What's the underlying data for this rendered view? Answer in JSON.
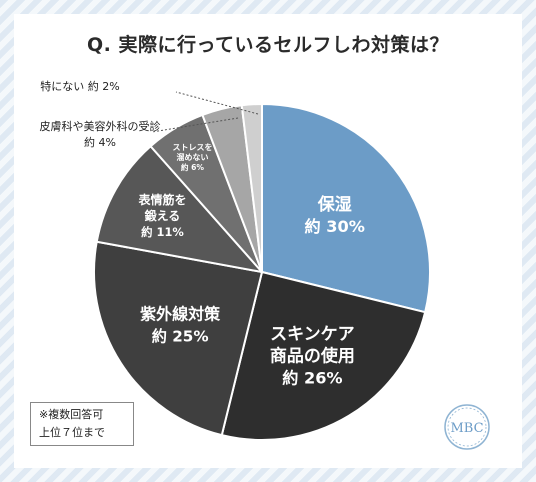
{
  "title": "Q. 実際に行っているセルフしわ対策は？",
  "footnote": {
    "line1": "※複数回答可",
    "line2": "上位７位まで"
  },
  "logo_text": "MBC",
  "colors": {
    "highlight": "#6c9cc7",
    "dark1": "#2e2e2e",
    "dark2": "#3d3d3d",
    "dark3": "#555555",
    "mid": "#6e6e6e",
    "light1": "#9b9b9b",
    "light2": "#bdbdbd",
    "light3": "#d6d6d6"
  },
  "chart_data": {
    "type": "pie",
    "title": "Q. 実際に行っているセルフしわ対策は？",
    "unit": "%",
    "slices": [
      {
        "lines": [
          "保湿",
          "約 30%"
        ],
        "value": 30,
        "color": "#6c9cc7"
      },
      {
        "lines": [
          "スキンケア",
          "商品の使用",
          "約 26%"
        ],
        "value": 26,
        "color": "#2e2e2e"
      },
      {
        "lines": [
          "紫外線対策",
          "約 25%"
        ],
        "value": 25,
        "color": "#3f3f3f"
      },
      {
        "lines": [
          "表情筋を",
          "鍛える",
          "約 11%"
        ],
        "value": 11,
        "color": "#575757"
      },
      {
        "lines": [
          "ストレスを",
          "溜めない",
          "約 6%"
        ],
        "value": 6,
        "color": "#707070"
      },
      {
        "lines": [
          "皮膚科や美容外科の受診",
          "約 4%"
        ],
        "value": 4,
        "color": "#a6a6a6"
      },
      {
        "lines": [
          "特にない 約 2%"
        ],
        "value": 2,
        "color": "#cfcfcf"
      }
    ]
  }
}
